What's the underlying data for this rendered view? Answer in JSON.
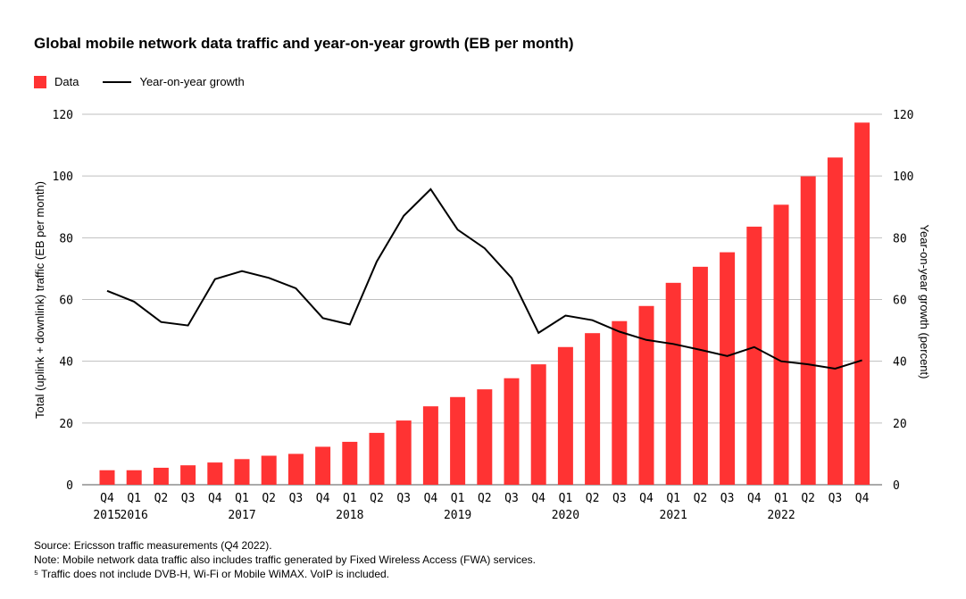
{
  "title": "Global mobile network data traffic and year-on-year growth (EB per month)",
  "legend": {
    "data_label": "Data",
    "growth_label": "Year-on-year growth"
  },
  "notes": {
    "source": "Source: Ericsson traffic measurements (Q4 2022).",
    "note": "Note: Mobile network data traffic also includes traffic generated by Fixed Wireless Access (FWA) services.",
    "footnote": "⁵ Traffic does not include DVB-H, Wi-Fi or Mobile WiMAX. VoIP is included."
  },
  "colors": {
    "bar": "#ff3333",
    "line": "#000000",
    "grid": "#bfbfbf"
  },
  "chart_data": {
    "type": "bar",
    "title": "Global mobile network data traffic and year-on-year growth (EB per month)",
    "ylabel": "Total (uplink + downlink) traffic (EB per month)",
    "y2label": "Year-on-year growth (percent)",
    "ylim": [
      0,
      120
    ],
    "y2lim": [
      0,
      120
    ],
    "yticks": [
      0,
      20,
      40,
      60,
      80,
      100,
      120
    ],
    "grid": true,
    "legend_position": "top-left",
    "categories": [
      "Q4",
      "Q1",
      "Q2",
      "Q3",
      "Q4",
      "Q1",
      "Q2",
      "Q3",
      "Q4",
      "Q1",
      "Q2",
      "Q3",
      "Q4",
      "Q1",
      "Q2",
      "Q3",
      "Q4",
      "Q1",
      "Q2",
      "Q3",
      "Q4",
      "Q1",
      "Q2",
      "Q3",
      "Q4",
      "Q1",
      "Q2",
      "Q3",
      "Q4"
    ],
    "year_labels": [
      {
        "index": 0,
        "label": "2015"
      },
      {
        "index": 1,
        "label": "2016"
      },
      {
        "index": 5,
        "label": "2017"
      },
      {
        "index": 9,
        "label": "2018"
      },
      {
        "index": 13,
        "label": "2019"
      },
      {
        "index": 17,
        "label": "2020"
      },
      {
        "index": 21,
        "label": "2021"
      },
      {
        "index": 25,
        "label": "2022"
      }
    ],
    "series": [
      {
        "name": "Data",
        "type": "bar",
        "values": [
          4.7,
          4.7,
          5.5,
          6.3,
          7.2,
          8.3,
          9.4,
          10,
          12.3,
          13.9,
          16.8,
          20.8,
          25.4,
          28.4,
          30.9,
          34.5,
          39,
          44.6,
          49.1,
          53,
          57.9,
          65.4,
          70.6,
          75.3,
          83.6,
          90.7,
          99.9,
          106,
          117.3
        ]
      },
      {
        "name": "Year-on-year growth",
        "type": "line",
        "axis": "right",
        "values": [
          62.8,
          59.3,
          52.7,
          51.6,
          66.6,
          69.2,
          67,
          63.6,
          54,
          51.9,
          72.3,
          87.1,
          95.7,
          82.6,
          76.6,
          67,
          49.2,
          54.8,
          53.3,
          49.6,
          46.9,
          45.6,
          43.7,
          41.7,
          44.6,
          40,
          39,
          37.6,
          40.3
        ]
      }
    ]
  }
}
